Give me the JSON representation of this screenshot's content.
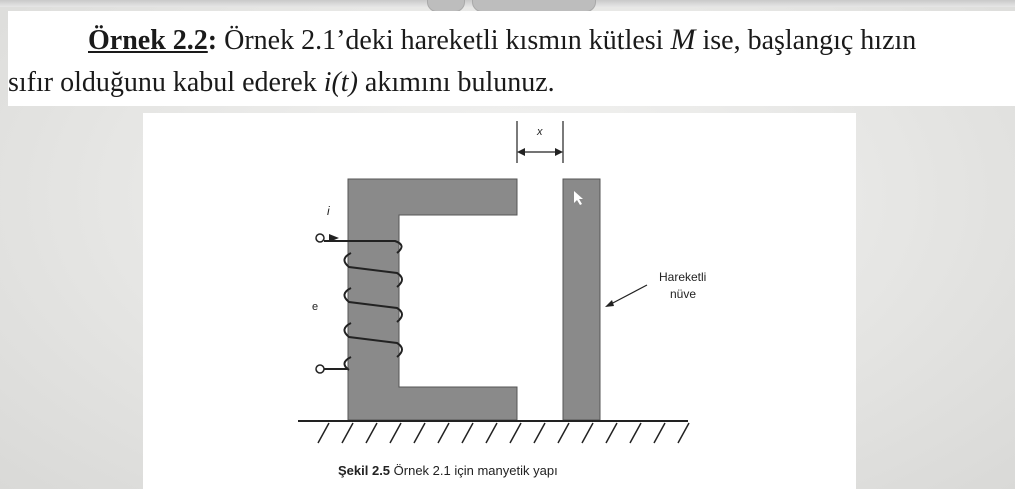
{
  "problem": {
    "heading": "Örnek 2.2",
    "colon": ":",
    "line1_rest": " Örnek 2.1’deki hareketli kısmın kütlesi ",
    "mass_symbol": "M",
    "line1_end": " ise, başlangıç hızın",
    "line2_start": "sıfır olduğunu kabul ederek ",
    "current_symbol": "i(t)",
    "line2_end": " akımını bulunuz."
  },
  "figure": {
    "label_x": "x",
    "label_i": "i",
    "label_e": "e",
    "moving_core_line1": "Hareketli",
    "moving_core_line2": "nüve",
    "caption_bold": "Şekil 2.5",
    "caption_text": " Örnek 2.1 için manyetik yapı"
  }
}
